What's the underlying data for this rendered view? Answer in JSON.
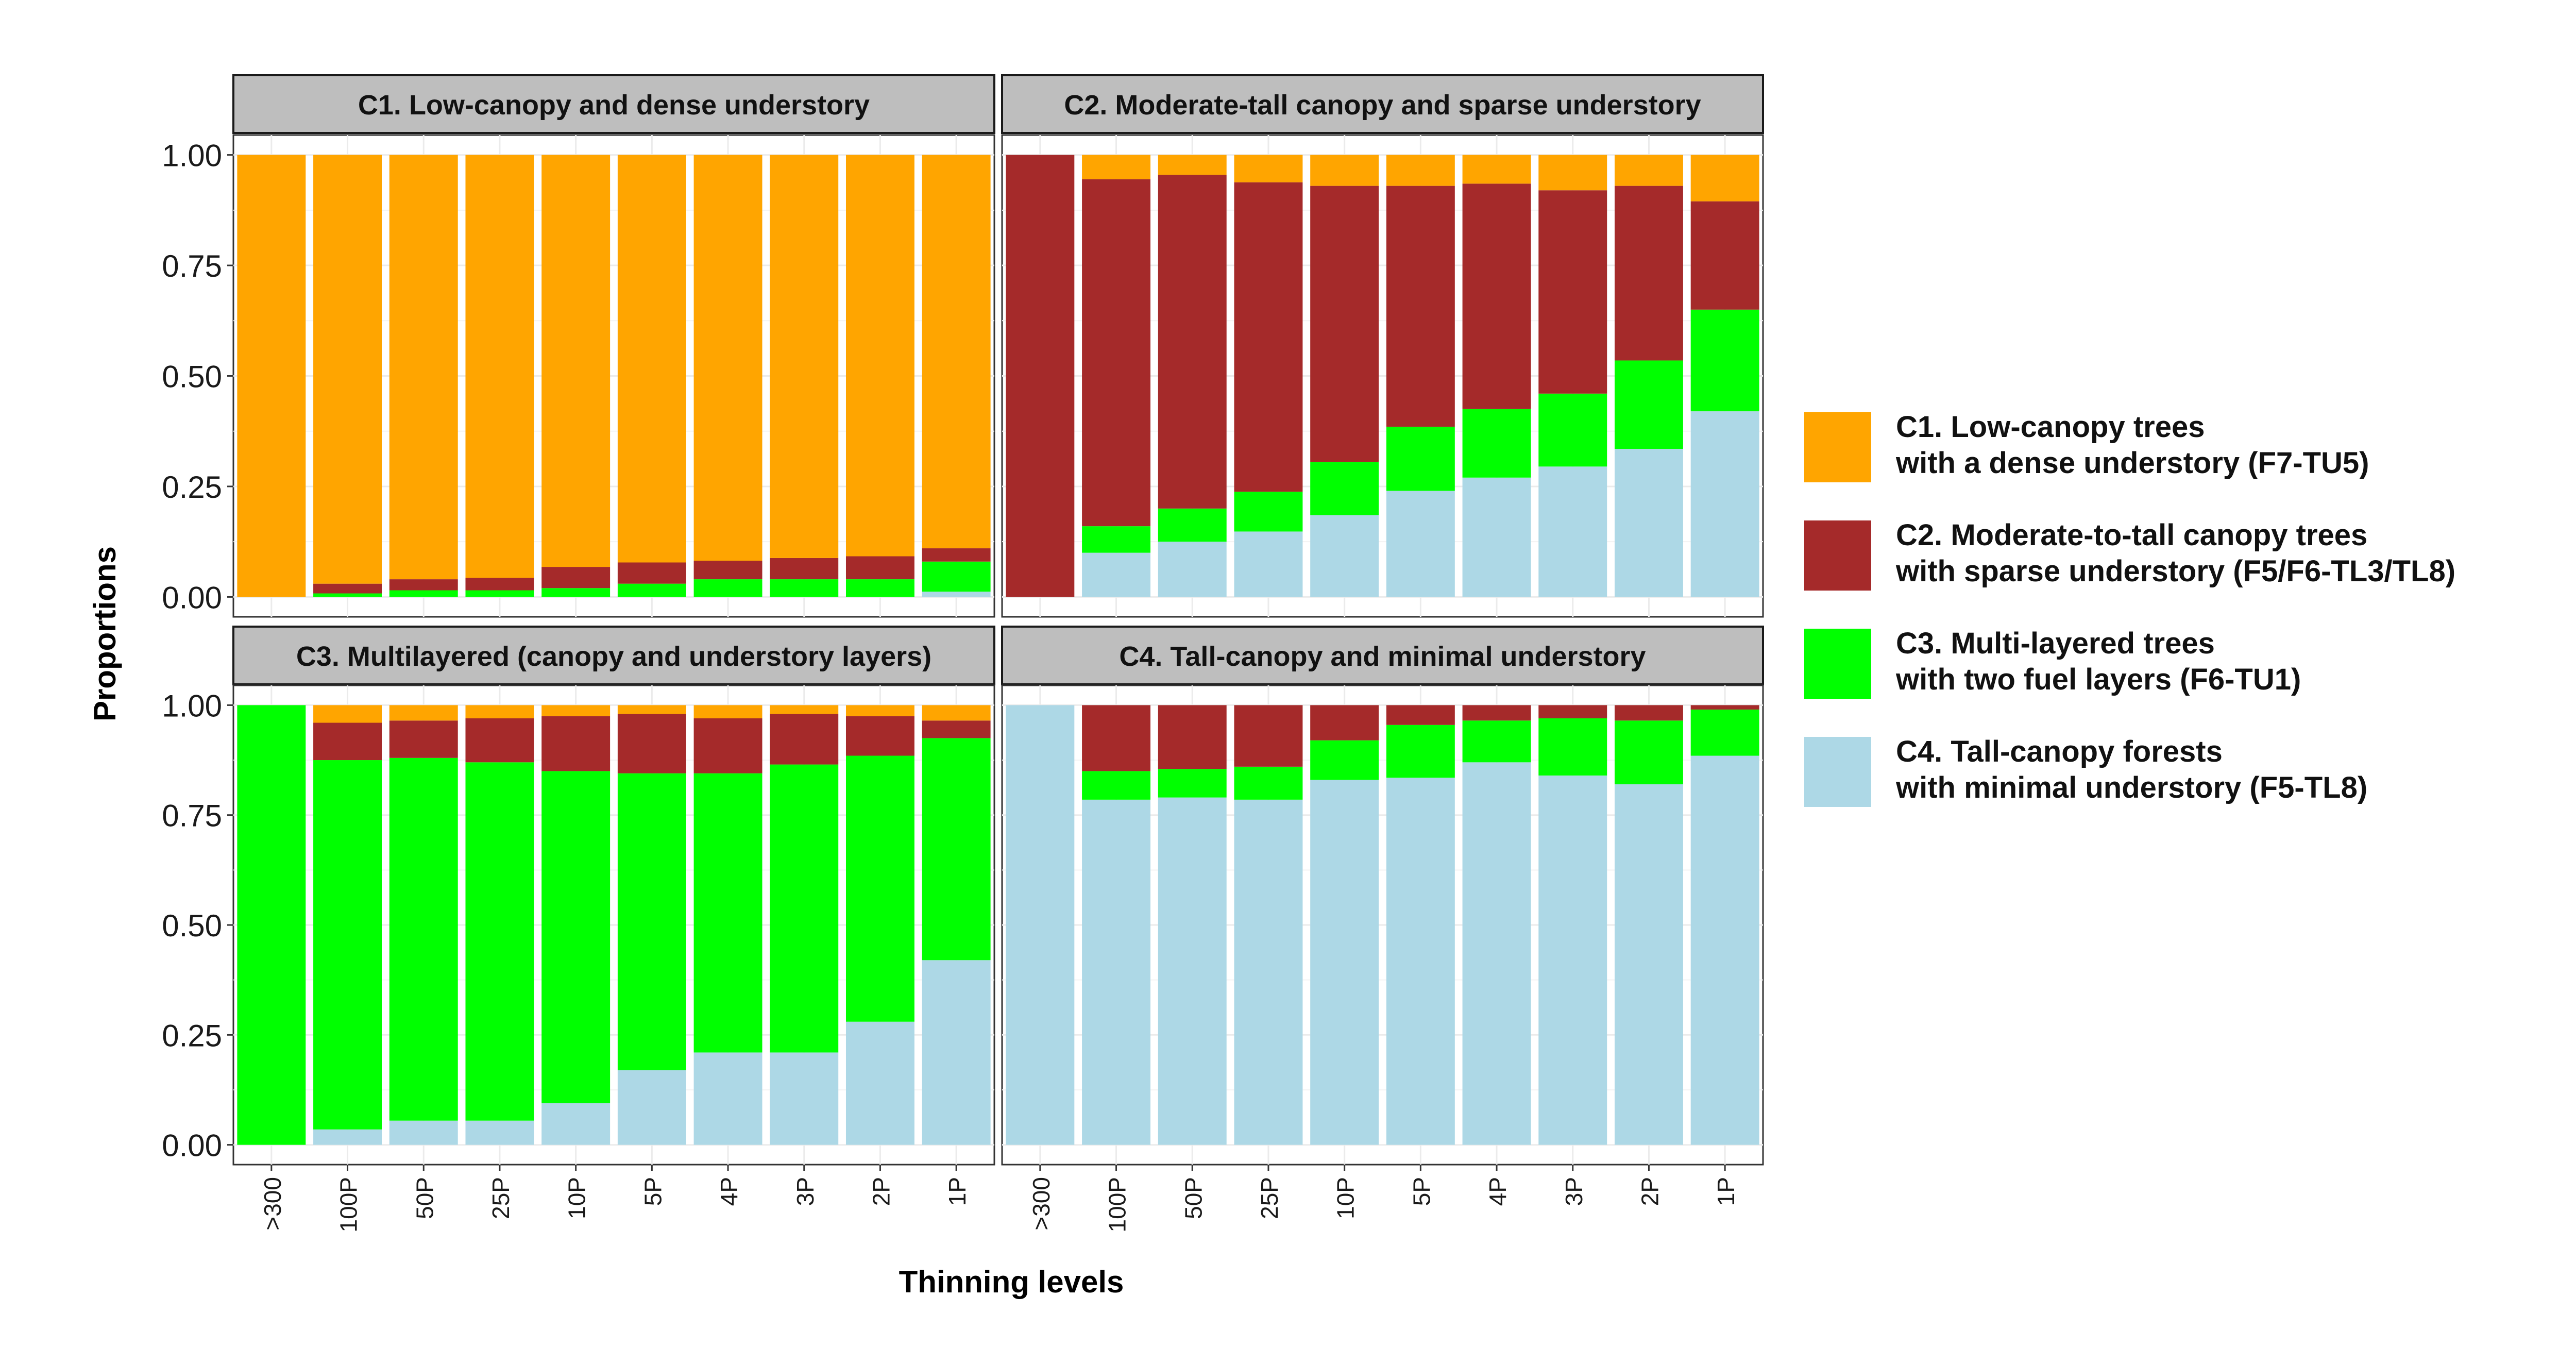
{
  "chart_data": {
    "type": "bar",
    "stacked": true,
    "facets": 4,
    "xlabel": "Thinning levels",
    "ylabel": "Proportions",
    "ylim": [
      0,
      1
    ],
    "yticks": [
      "0.00",
      "0.25",
      "0.50",
      "0.75",
      "1.00"
    ],
    "categories": [
      ">300",
      "100P",
      "50P",
      "25P",
      "10P",
      "5P",
      "4P",
      "3P",
      "2P",
      "1P"
    ],
    "legend": {
      "position": "right",
      "entries": [
        {
          "key": "C1",
          "line1": "C1. Low-canopy trees",
          "line2": "with a dense understory (F7-TU5)",
          "color": "#FFA500"
        },
        {
          "key": "C2",
          "line1": "C2. Moderate-to-tall canopy trees",
          "line2": "with sparse understory (F5/F6-TL3/TL8)",
          "color": "#A52A2A"
        },
        {
          "key": "C3",
          "line1": "C3. Multi-layered trees",
          "line2": "with two fuel layers (F6-TU1)",
          "color": "#00FF00"
        },
        {
          "key": "C4",
          "line1": "C4. Tall-canopy forests",
          "line2": "with minimal understory (F5-TL8)",
          "color": "#ADD8E6"
        }
      ]
    },
    "panels": [
      {
        "title": "C1. Low-canopy and dense understory",
        "series": [
          {
            "key": "C4",
            "values": [
              0,
              0,
              0,
              0,
              0,
              0,
              0,
              0,
              0,
              0.012
            ]
          },
          {
            "key": "C3",
            "values": [
              0,
              0.008,
              0.015,
              0.015,
              0.02,
              0.03,
              0.04,
              0.04,
              0.04,
              0.068
            ]
          },
          {
            "key": "C2",
            "values": [
              0,
              0.022,
              0.025,
              0.028,
              0.048,
              0.048,
              0.042,
              0.048,
              0.052,
              0.03
            ]
          },
          {
            "key": "C1",
            "values": [
              1,
              0.97,
              0.96,
              0.957,
              0.932,
              0.922,
              0.918,
              0.912,
              0.908,
              0.89
            ]
          }
        ]
      },
      {
        "title": "C2. Moderate-tall canopy and sparse understory",
        "series": [
          {
            "key": "C4",
            "values": [
              0,
              0.1,
              0.125,
              0.148,
              0.185,
              0.24,
              0.27,
              0.295,
              0.335,
              0.42
            ]
          },
          {
            "key": "C3",
            "values": [
              0,
              0.06,
              0.075,
              0.09,
              0.12,
              0.145,
              0.155,
              0.165,
              0.2,
              0.23
            ]
          },
          {
            "key": "C2",
            "values": [
              1,
              0.785,
              0.755,
              0.7,
              0.625,
              0.545,
              0.51,
              0.46,
              0.395,
              0.245
            ]
          },
          {
            "key": "C1",
            "values": [
              0,
              0.055,
              0.045,
              0.062,
              0.07,
              0.07,
              0.065,
              0.08,
              0.07,
              0.105
            ]
          }
        ]
      },
      {
        "title": "C3. Multilayered (canopy and understory layers)",
        "series": [
          {
            "key": "C4",
            "values": [
              0,
              0.035,
              0.055,
              0.055,
              0.095,
              0.17,
              0.21,
              0.21,
              0.28,
              0.42
            ]
          },
          {
            "key": "C3",
            "values": [
              1,
              0.84,
              0.825,
              0.815,
              0.755,
              0.675,
              0.635,
              0.655,
              0.605,
              0.505
            ]
          },
          {
            "key": "C2",
            "values": [
              0,
              0.085,
              0.085,
              0.1,
              0.125,
              0.135,
              0.125,
              0.115,
              0.09,
              0.04
            ]
          },
          {
            "key": "C1",
            "values": [
              0,
              0.04,
              0.035,
              0.03,
              0.025,
              0.02,
              0.03,
              0.02,
              0.025,
              0.035
            ]
          }
        ]
      },
      {
        "title": "C4. Tall-canopy and minimal understory",
        "series": [
          {
            "key": "C4",
            "values": [
              1,
              0.785,
              0.79,
              0.785,
              0.83,
              0.835,
              0.87,
              0.84,
              0.82,
              0.885
            ]
          },
          {
            "key": "C3",
            "values": [
              0,
              0.065,
              0.065,
              0.075,
              0.09,
              0.12,
              0.095,
              0.13,
              0.145,
              0.105
            ]
          },
          {
            "key": "C2",
            "values": [
              0,
              0.15,
              0.145,
              0.14,
              0.08,
              0.045,
              0.035,
              0.03,
              0.035,
              0.01
            ]
          },
          {
            "key": "C1",
            "values": [
              0,
              0,
              0,
              0,
              0,
              0,
              0,
              0,
              0,
              0
            ]
          }
        ]
      }
    ]
  }
}
